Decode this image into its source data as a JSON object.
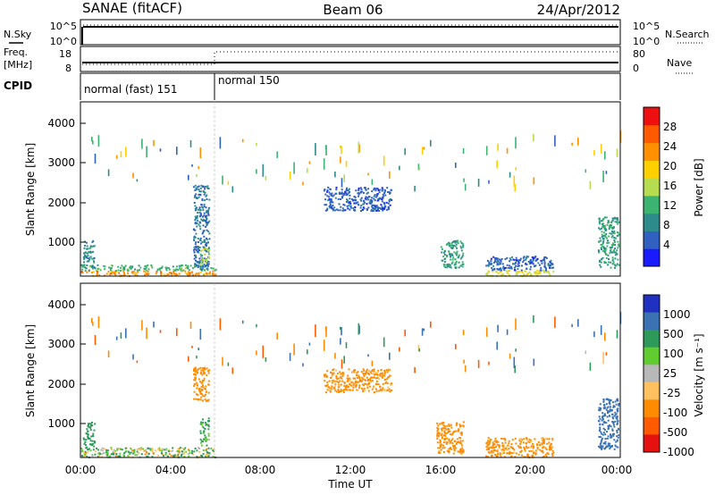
{
  "header": {
    "title": "SANAE (fitACF)",
    "beam": "Beam 06",
    "date": "24/Apr/2012"
  },
  "noise_panel": {
    "left_label": "N.Sky",
    "right_label": "N.Search",
    "left_ticks": [
      "10^5",
      "10^0"
    ],
    "right_ticks": [
      "10^5",
      "10^0"
    ]
  },
  "freq_panel": {
    "left_label_line1": "Freq.",
    "left_label_line2": "[MHz]",
    "right_label": "Nave",
    "left_ticks": [
      "18",
      "8"
    ],
    "right_ticks": [
      "80",
      "0"
    ]
  },
  "cpid_panel": {
    "label": "CPID",
    "segments": [
      {
        "label": "normal (fast) 151",
        "start_hour": 0,
        "end_hour": 6.0
      },
      {
        "label": "normal 150",
        "start_hour": 6.0,
        "end_hour": 24
      }
    ]
  },
  "x_axis": {
    "label": "Time UT",
    "ticks": [
      "00:00",
      "04:00",
      "08:00",
      "12:00",
      "16:00",
      "20:00",
      "00:00"
    ],
    "range_hours": [
      0,
      24
    ]
  },
  "power_panel": {
    "ylabel": "Slant Range [km]",
    "yticks": [
      "1000",
      "2000",
      "3000",
      "4000"
    ],
    "ylim": [
      180,
      4600
    ],
    "colorbar_label": "Power [dB]",
    "colorbar_ticks": [
      "4",
      "8",
      "12",
      "16",
      "20",
      "24",
      "28"
    ]
  },
  "velocity_panel": {
    "ylabel": "Slant Range [km]",
    "yticks": [
      "1000",
      "2000",
      "3000",
      "4000"
    ],
    "ylim": [
      180,
      4600
    ],
    "colorbar_label": "Velocity [m s⁻¹]",
    "colorbar_ticks": [
      "1000",
      "500",
      "100",
      "25",
      "-25",
      "-100",
      "-500",
      "-1000"
    ]
  },
  "chart_data": [
    {
      "type": "heatmap",
      "title": "Power",
      "xlabel": "Time UT",
      "ylabel": "Slant Range [km]",
      "xlim": [
        0,
        24
      ],
      "ylim": [
        180,
        4600
      ],
      "colorscale": {
        "label": "Power [dB]",
        "levels": [
          0,
          4,
          8,
          12,
          16,
          20,
          24,
          28,
          32
        ],
        "colors": [
          "#1a1aff",
          "#3060c0",
          "#2e8b8b",
          "#3cb371",
          "#b8dc50",
          "#ffd000",
          "#ff9000",
          "#ff5a00",
          "#ee1010"
        ]
      },
      "regions": [
        {
          "t0": 0.0,
          "t1": 6.0,
          "r0": 200,
          "r1": 330,
          "value": 26
        },
        {
          "t0": 0.0,
          "t1": 6.0,
          "r0": 330,
          "r1": 480,
          "value": 14
        },
        {
          "t0": 0.1,
          "t1": 0.6,
          "r0": 400,
          "r1": 1100,
          "value": 10
        },
        {
          "t0": 5.0,
          "t1": 5.7,
          "r0": 350,
          "r1": 2500,
          "value": 8
        },
        {
          "t0": 5.3,
          "t1": 5.7,
          "r0": 500,
          "r1": 900,
          "value": 18
        },
        {
          "t0": 10.8,
          "t1": 13.8,
          "r0": 1850,
          "r1": 2450,
          "value": 6
        },
        {
          "t0": 16.0,
          "t1": 17.0,
          "r0": 400,
          "r1": 1100,
          "value": 12
        },
        {
          "t0": 18.0,
          "t1": 21.0,
          "r0": 200,
          "r1": 350,
          "value": 20
        },
        {
          "t0": 18.0,
          "t1": 21.0,
          "r0": 350,
          "r1": 700,
          "value": 6
        },
        {
          "t0": 23.0,
          "t1": 23.9,
          "r0": 400,
          "r1": 1700,
          "value": 12
        }
      ]
    },
    {
      "type": "heatmap",
      "title": "Velocity",
      "xlabel": "Time UT",
      "ylabel": "Slant Range [km]",
      "xlim": [
        0,
        24
      ],
      "ylim": [
        180,
        4600
      ],
      "colorscale": {
        "label": "Velocity [m s⁻¹]",
        "levels": [
          -1200,
          -1000,
          -500,
          -100,
          -25,
          25,
          100,
          500,
          1000,
          1200
        ],
        "colors": [
          "#e51010",
          "#ff5a00",
          "#ff8c00",
          "#ffc060",
          "#b8b8b8",
          "#60cc30",
          "#2e9a5a",
          "#3a72b4",
          "#2030c0"
        ]
      },
      "regions": [
        {
          "t0": 0.0,
          "t1": 6.0,
          "r0": 200,
          "r1": 450,
          "value": 60
        },
        {
          "t0": 0.1,
          "t1": 0.6,
          "r0": 400,
          "r1": 1100,
          "value": 300
        },
        {
          "t0": 5.0,
          "t1": 5.7,
          "r0": 1600,
          "r1": 2500,
          "value": -300
        },
        {
          "t0": 5.3,
          "t1": 5.7,
          "r0": 500,
          "r1": 1200,
          "value": 200
        },
        {
          "t0": 10.8,
          "t1": 13.8,
          "r0": 1850,
          "r1": 2450,
          "value": -250
        },
        {
          "t0": 15.8,
          "t1": 17.0,
          "r0": 300,
          "r1": 1100,
          "value": -300
        },
        {
          "t0": 18.0,
          "t1": 21.0,
          "r0": 200,
          "r1": 700,
          "value": -250
        },
        {
          "t0": 23.0,
          "t1": 23.9,
          "r0": 400,
          "r1": 1700,
          "value": 700
        }
      ]
    }
  ]
}
